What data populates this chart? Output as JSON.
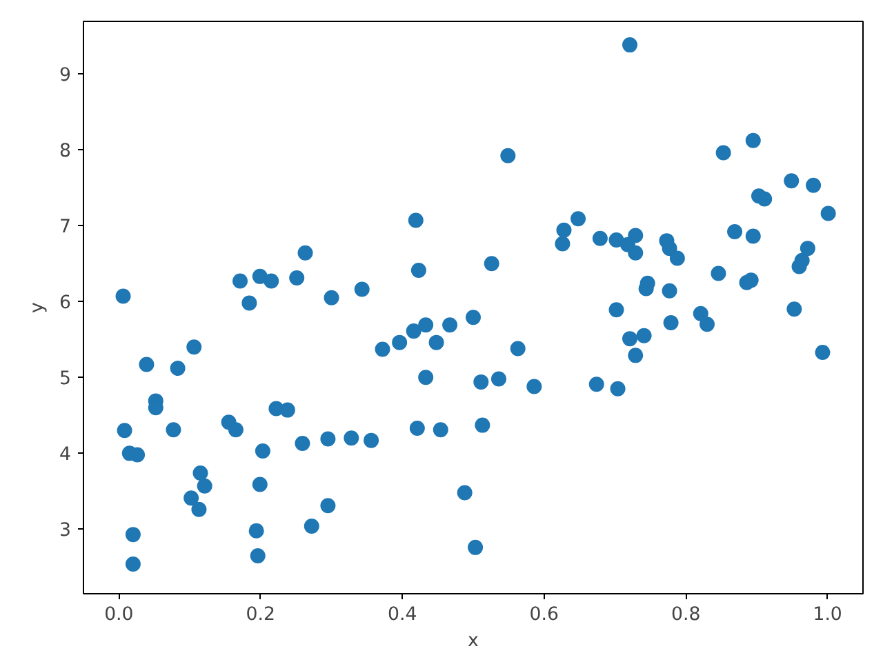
{
  "chart_data": {
    "type": "scatter",
    "xlabel": "x",
    "ylabel": "y",
    "marker": "circle",
    "grid": false,
    "xlim": [
      -0.05,
      1.05
    ],
    "ylim": [
      2.15,
      9.69
    ],
    "xticks": [
      {
        "value": 0,
        "label": "0.0"
      },
      {
        "value": 0.2,
        "label": "0.2"
      },
      {
        "value": 0.4,
        "label": "0.4"
      },
      {
        "value": 0.6,
        "label": "0.6"
      },
      {
        "value": 0.8,
        "label": "0.8"
      },
      {
        "value": 1,
        "label": "1.0"
      }
    ],
    "yticks": [
      3,
      4,
      5,
      6,
      7,
      8,
      9
    ],
    "series": [
      {
        "color": "#1f77b4",
        "x": [
          0.006,
          0.263,
          0.171,
          0.199,
          0.215,
          0.251,
          0.184,
          0.3,
          0.343,
          0.106,
          0.039,
          0.083,
          0.052,
          0.052,
          0.008,
          0.077,
          0.155,
          0.165,
          0.222,
          0.238,
          0.015,
          0.026,
          0.203,
          0.259,
          0.295,
          0.328,
          0.356,
          0.115,
          0.121,
          0.102,
          0.113,
          0.199,
          0.295,
          0.272,
          0.194,
          0.196,
          0.02,
          0.02,
          0.549,
          0.419,
          0.423,
          0.526,
          0.628,
          0.626,
          0.648,
          0.679,
          0.702,
          0.702,
          0.372,
          0.396,
          0.416,
          0.433,
          0.467,
          0.448,
          0.5,
          0.433,
          0.511,
          0.536,
          0.563,
          0.586,
          0.674,
          0.704,
          0.421,
          0.454,
          0.513,
          0.488,
          0.503,
          0.721,
          0.853,
          0.895,
          0.949,
          0.98,
          0.903,
          0.911,
          1.001,
          0.729,
          0.718,
          0.729,
          0.773,
          0.777,
          0.788,
          0.869,
          0.895,
          0.972,
          0.964,
          0.96,
          0.846,
          0.886,
          0.892,
          0.746,
          0.744,
          0.777,
          0.953,
          0.821,
          0.83,
          0.779,
          0.741,
          0.721,
          0.729,
          0.993
        ],
        "values": [
          6.07,
          6.64,
          6.27,
          6.33,
          6.27,
          6.31,
          5.98,
          6.05,
          6.16,
          5.4,
          5.17,
          5.12,
          4.69,
          4.6,
          4.3,
          4.31,
          4.41,
          4.31,
          4.59,
          4.57,
          4.0,
          3.98,
          4.03,
          4.13,
          4.19,
          4.2,
          4.17,
          3.74,
          3.57,
          3.41,
          3.26,
          3.59,
          3.31,
          3.04,
          2.98,
          2.65,
          2.93,
          2.54,
          7.92,
          7.07,
          6.41,
          6.5,
          6.94,
          6.76,
          7.09,
          6.83,
          6.81,
          5.89,
          5.37,
          5.46,
          5.61,
          5.69,
          5.69,
          5.46,
          5.79,
          5.0,
          4.94,
          4.98,
          5.38,
          4.88,
          4.91,
          4.85,
          4.33,
          4.31,
          4.37,
          3.48,
          2.76,
          9.38,
          7.96,
          8.12,
          7.59,
          7.53,
          7.39,
          7.35,
          7.16,
          6.87,
          6.75,
          6.64,
          6.8,
          6.7,
          6.57,
          6.92,
          6.86,
          6.7,
          6.54,
          6.46,
          6.37,
          6.25,
          6.28,
          6.24,
          6.17,
          6.14,
          5.9,
          5.84,
          5.7,
          5.72,
          5.55,
          5.51,
          5.29,
          5.33
        ]
      }
    ]
  }
}
